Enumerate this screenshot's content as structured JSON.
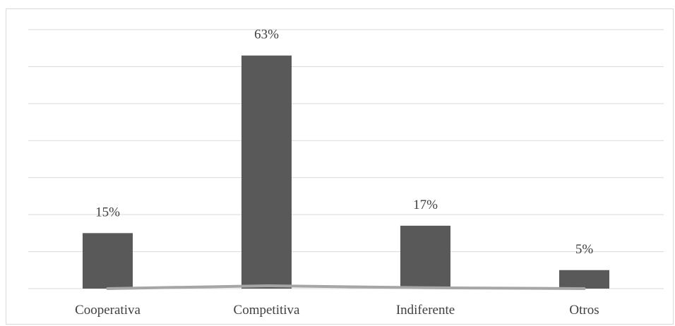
{
  "chart_data": {
    "type": "bar",
    "title": "",
    "xlabel": "",
    "ylabel": "",
    "categories": [
      "Cooperativa",
      "Competitiva",
      "Indiferente",
      "Otros"
    ],
    "values": [
      15,
      63,
      17,
      5
    ],
    "data_labels": [
      "15%",
      "63%",
      "17%",
      "5%"
    ],
    "ylim": [
      0,
      70
    ],
    "grid": true,
    "y_axis_labels_shown": false,
    "legend": "none",
    "trend_line": {
      "shown": true,
      "values": [
        0,
        1,
        0.3,
        0
      ],
      "color": "#a6a6a6"
    },
    "colors": {
      "bar": "#595959",
      "gridline": "#d9d9d9",
      "text": "#404040"
    }
  }
}
